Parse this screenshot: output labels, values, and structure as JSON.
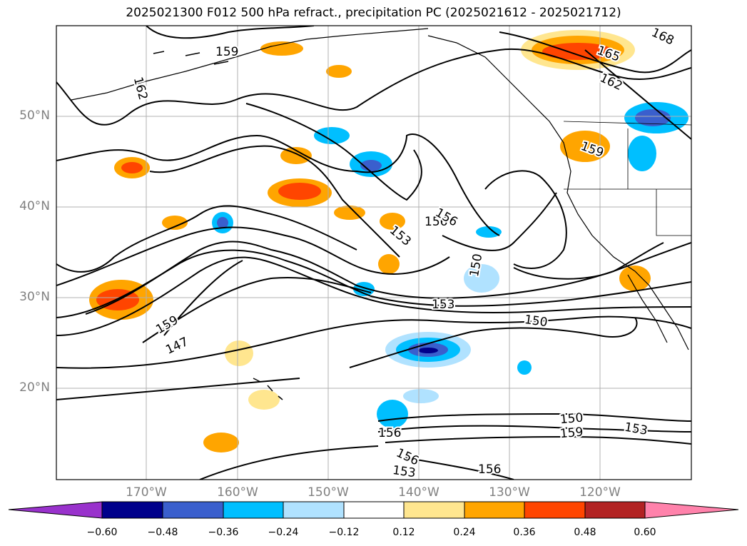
{
  "title": "2025021300 F012 500 hPa refract., precipitation PC (2025021612 - 2025021712)",
  "lat_labels": [
    "50°N",
    "40°N",
    "30°N",
    "20°N"
  ],
  "lon_labels": [
    "170°W",
    "160°W",
    "150°W",
    "140°W",
    "130°W",
    "120°W"
  ],
  "contour_labels": [
    "159",
    "162",
    "165",
    "168",
    "162",
    "159",
    "156",
    "156",
    "153",
    "150",
    "153",
    "150",
    "159",
    "147",
    "150",
    "159",
    "153",
    "156",
    "156",
    "153",
    "156"
  ],
  "colorbar": {
    "ticks": [
      "−0.60",
      "−0.48",
      "−0.36",
      "−0.24",
      "−0.12",
      "0.12",
      "0.24",
      "0.36",
      "0.48",
      "0.60"
    ],
    "colors": [
      "#9932cc",
      "#00008b",
      "#3a5fcd",
      "#00bfff",
      "#b0e2ff",
      "#ffffff",
      "#ffe68f",
      "#ffa500",
      "#ff4500",
      "#b22222",
      "#ff82ab"
    ]
  }
}
